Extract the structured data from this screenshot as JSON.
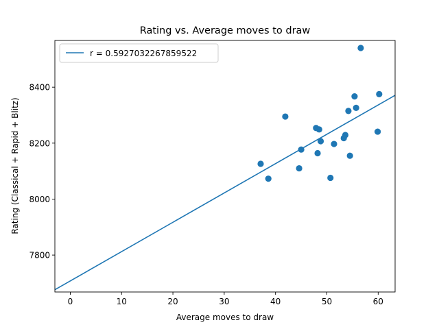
{
  "chart_data": {
    "type": "scatter",
    "title": "Rating vs. Average moves to draw",
    "xlabel": "Average moves to draw",
    "ylabel": "Rating (Classical + Rapid + Blitz)",
    "xlim": [
      -3,
      63.3
    ],
    "ylim": [
      7668,
      8567
    ],
    "x_ticks": [
      0,
      10,
      20,
      30,
      40,
      50,
      60
    ],
    "y_ticks": [
      7800,
      8000,
      8200,
      8400
    ],
    "x_tick_labels": [
      "0",
      "10",
      "20",
      "30",
      "40",
      "50",
      "60"
    ],
    "y_tick_labels": [
      "7800",
      "8000",
      "8200",
      "8400"
    ],
    "grid": false,
    "legend_position": "top-left",
    "color": "#1f77b4",
    "series": [
      {
        "kind": "points",
        "points": [
          {
            "x": 37.1,
            "y": 8126
          },
          {
            "x": 38.6,
            "y": 8073
          },
          {
            "x": 41.9,
            "y": 8295
          },
          {
            "x": 44.6,
            "y": 8110
          },
          {
            "x": 45.0,
            "y": 8177
          },
          {
            "x": 47.9,
            "y": 8254
          },
          {
            "x": 48.2,
            "y": 8164
          },
          {
            "x": 48.5,
            "y": 8249
          },
          {
            "x": 48.8,
            "y": 8207
          },
          {
            "x": 50.7,
            "y": 8076
          },
          {
            "x": 51.4,
            "y": 8197
          },
          {
            "x": 53.3,
            "y": 8218
          },
          {
            "x": 53.6,
            "y": 8229
          },
          {
            "x": 54.2,
            "y": 8315
          },
          {
            "x": 54.5,
            "y": 8155
          },
          {
            "x": 55.4,
            "y": 8367
          },
          {
            "x": 55.7,
            "y": 8326
          },
          {
            "x": 56.6,
            "y": 8540
          },
          {
            "x": 59.9,
            "y": 8241
          },
          {
            "x": 60.2,
            "y": 8375
          }
        ]
      },
      {
        "kind": "line",
        "name": "r = 0.5927032267859522",
        "line": [
          {
            "x": -3,
            "y": 7676
          },
          {
            "x": 63.3,
            "y": 8371
          }
        ]
      }
    ]
  }
}
